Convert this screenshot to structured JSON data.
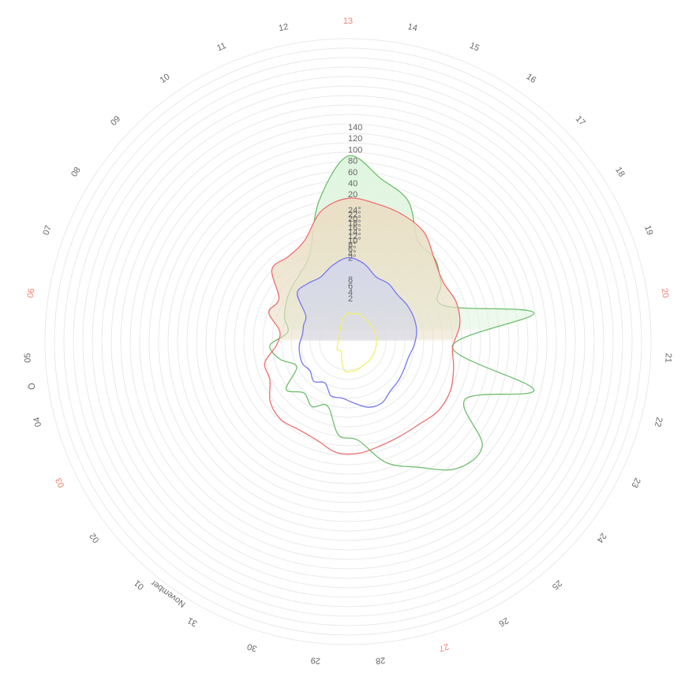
{
  "chart_data": {
    "type": "radial-line",
    "day_labels": [
      {
        "text": "13",
        "weekend": true
      },
      {
        "text": "14",
        "weekend": false
      },
      {
        "text": "15",
        "weekend": false
      },
      {
        "text": "16",
        "weekend": false
      },
      {
        "text": "17",
        "weekend": false
      },
      {
        "text": "18",
        "weekend": false
      },
      {
        "text": "19",
        "weekend": false
      },
      {
        "text": "20",
        "weekend": true
      },
      {
        "text": "21",
        "weekend": false
      },
      {
        "text": "22",
        "weekend": false
      },
      {
        "text": "23",
        "weekend": false
      },
      {
        "text": "24",
        "weekend": false
      },
      {
        "text": "25",
        "weekend": false
      },
      {
        "text": "26",
        "weekend": false
      },
      {
        "text": "27",
        "weekend": true
      },
      {
        "text": "28",
        "weekend": false
      },
      {
        "text": "29",
        "weekend": false
      },
      {
        "text": "30",
        "weekend": false
      },
      {
        "text": "31",
        "weekend": false
      },
      {
        "text": "01",
        "weekend": false
      },
      {
        "text": "02",
        "weekend": false
      },
      {
        "text": "03",
        "weekend": true
      },
      {
        "text": "04",
        "weekend": false
      },
      {
        "text": "05",
        "weekend": false
      },
      {
        "text": "06",
        "weekend": true
      },
      {
        "text": "07",
        "weekend": false
      },
      {
        "text": "08",
        "weekend": false
      },
      {
        "text": "09",
        "weekend": false
      },
      {
        "text": "10",
        "weekend": false
      },
      {
        "text": "11",
        "weekend": false
      },
      {
        "text": "12",
        "weekend": false
      }
    ],
    "month_labels": [
      "November",
      "Ö"
    ],
    "scales": {
      "green": [
        "140",
        "120",
        "100",
        "80",
        "60",
        "40",
        "20"
      ],
      "red": [
        "24°",
        "22°",
        "20°",
        "18°",
        "16°",
        "14°",
        "12°",
        "10°",
        "8°",
        "6°",
        "4°",
        "2°"
      ],
      "blue": [
        "8",
        "6",
        "4",
        "2"
      ]
    },
    "series": [
      {
        "color": "#6fbf6f",
        "fill": "#dff5df",
        "values": [
          120,
          105,
          95,
          72,
          70,
          62,
          57,
          122,
          58,
          125,
          78,
          108,
          106,
          88,
          75,
          54,
          50,
          30,
          35,
          30,
          38,
          22,
          32,
          38,
          25,
          30,
          34,
          38,
          42,
          52,
          88
        ]
      },
      {
        "color": "#ee6f6f",
        "fill": "#eadfc6",
        "values": [
          21.5,
          21.0,
          20.5,
          19.5,
          16.8,
          15.4,
          16.0,
          15.6,
          14.0,
          14.8,
          15.7,
          15.7,
          14.8,
          14.6,
          14.8,
          15.4,
          15.3,
          13.7,
          13.2,
          13.6,
          12.7,
          10.5,
          10.3,
          7.5,
          7.0,
          10.0,
          9.4,
          14.0,
          13.8,
          15.0,
          19.5
        ]
      },
      {
        "color": "#7777ee",
        "fill": "#d4d7ea",
        "values": [
          8.8,
          8.1,
          6.7,
          6.7,
          6.3,
          6.5,
          6.6,
          6.5,
          6.0,
          5.4,
          5.4,
          5.6,
          5.8,
          6.6,
          6.4,
          5.3,
          4.5,
          4.5,
          3.0,
          3.8,
          3.1,
          3.5,
          3.4,
          3.2,
          2.8,
          3.0,
          3.4,
          6.6,
          6.7,
          6.6,
          7.8
        ]
      },
      {
        "color": "#f2f06a",
        "fill": "none",
        "values": [
          1.9,
          1.9,
          2.0,
          1.9,
          1.9,
          1.9,
          1.9,
          1.9,
          1.9,
          1.9,
          1.9,
          1.9,
          1.9,
          1.9,
          2.6,
          2.6,
          2.4,
          1.4,
          0.9,
          0.8,
          0.9,
          0.8,
          0.7,
          0.6,
          0.5,
          0.6,
          0.7,
          0.8,
          0.9,
          1.2,
          1.6
        ]
      }
    ]
  }
}
